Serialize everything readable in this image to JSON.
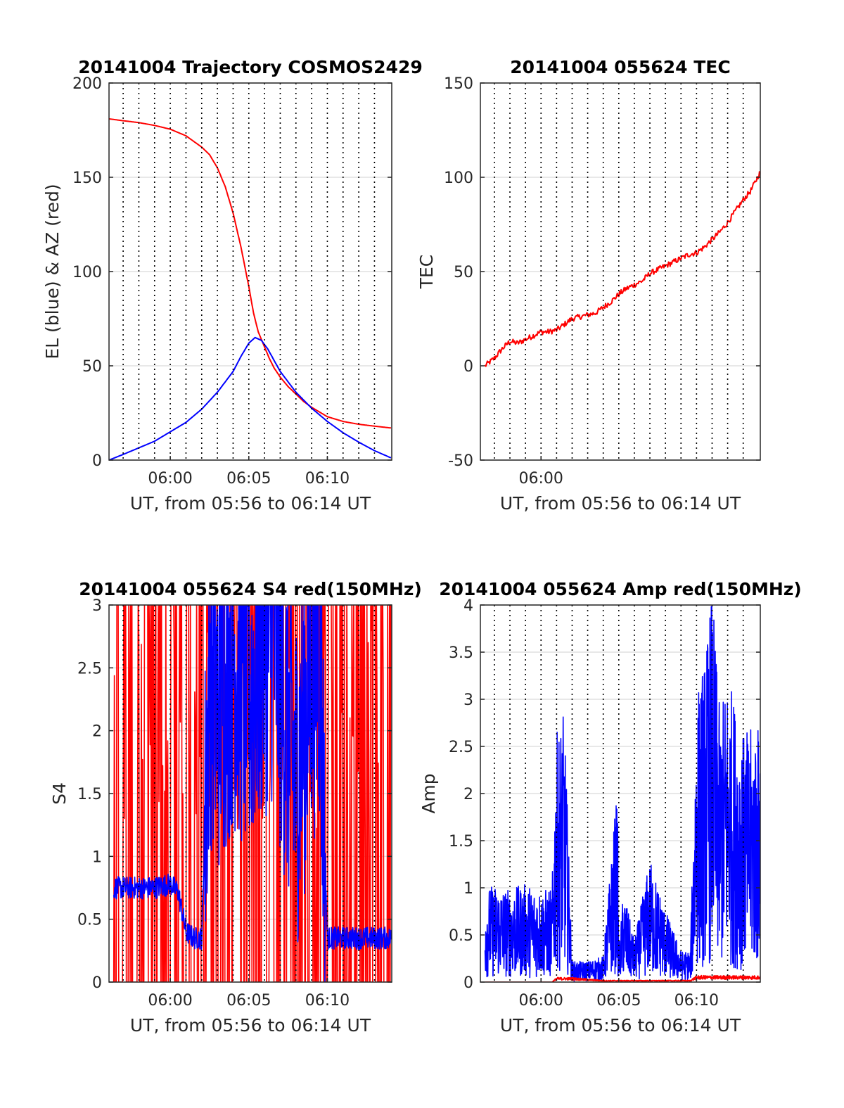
{
  "chart_data": [
    {
      "type": "line",
      "title": "20141004 Trajectory COSMOS2429",
      "xlabel": "UT, from 05:56 to 06:14 UT",
      "ylabel": "EL (blue) & AZ (red)",
      "xlim_minutes": [
        356.1,
        374.1
      ],
      "ylim": [
        0,
        200
      ],
      "yticks": [
        0,
        50,
        100,
        150,
        200
      ],
      "xticks": [
        {
          "x": 360,
          "label": "06:00"
        },
        {
          "x": 365,
          "label": "06:05"
        },
        {
          "x": 370,
          "label": "06:10"
        }
      ],
      "vgrid_minutes": [
        357,
        358,
        359,
        360,
        361,
        362,
        363,
        364,
        365,
        366,
        367,
        368,
        369,
        370,
        371,
        372,
        373
      ],
      "series": [
        {
          "color": "#ff0000",
          "x": [
            356.1,
            357,
            358,
            359,
            360,
            361,
            362,
            362.5,
            363,
            363.5,
            364,
            364.5,
            365,
            365.3,
            365.6,
            366,
            366.3,
            366.6,
            367,
            367.5,
            368,
            368.5,
            369,
            369.5,
            370,
            371,
            372,
            373,
            374.1
          ],
          "values": [
            181,
            180,
            179,
            177.5,
            175.5,
            172,
            166,
            162,
            155,
            145,
            131,
            113,
            92,
            78,
            68,
            60,
            54,
            49,
            44,
            39,
            35,
            31,
            28,
            25.5,
            23,
            20.5,
            19,
            18,
            17
          ]
        },
        {
          "color": "#0000ff",
          "x": [
            356.1,
            357,
            358,
            359,
            360,
            361,
            362,
            363,
            364,
            364.5,
            365,
            365.4,
            365.8,
            366.2,
            366.6,
            367,
            368,
            369,
            370,
            371,
            372,
            373,
            374.1
          ],
          "values": [
            0,
            3,
            6.5,
            10,
            15,
            20,
            27,
            36,
            47,
            55,
            62,
            65,
            63.5,
            59,
            53,
            47,
            36,
            27.5,
            20.5,
            14.5,
            9.5,
            5,
            1
          ]
        }
      ]
    },
    {
      "type": "line",
      "title": "20141004 055624 TEC",
      "xlabel": "UT, from 05:56 to 06:14 UT",
      "ylabel": "TEC",
      "xlim_minutes": [
        356.1,
        374.1
      ],
      "ylim": [
        -50,
        150
      ],
      "yticks": [
        -50,
        0,
        50,
        100,
        150
      ],
      "xticks": [
        {
          "x": 360,
          "label": "06:00"
        }
      ],
      "vgrid_minutes": [
        357,
        358,
        359,
        360,
        361,
        362,
        363,
        364,
        365,
        366,
        367,
        368,
        369,
        370,
        371,
        372,
        373
      ],
      "series": [
        {
          "color": "#ff0000",
          "x": [
            356.4,
            357,
            357.5,
            358,
            358.5,
            359,
            359.5,
            360,
            360.5,
            361,
            361.5,
            362,
            362.5,
            363,
            363.5,
            364,
            364.5,
            365,
            365.5,
            366,
            366.5,
            367,
            367.5,
            368,
            368.5,
            369,
            369.5,
            370,
            370.5,
            371,
            371.5,
            372,
            372.5,
            373,
            373.5,
            374.1
          ],
          "values": [
            0,
            4,
            9,
            13,
            12,
            14,
            16,
            18,
            18,
            19,
            22,
            25,
            26,
            27,
            28,
            31,
            34,
            38,
            41,
            43,
            45,
            49,
            51,
            53,
            55,
            57,
            59,
            60,
            63,
            67,
            71,
            76,
            82,
            88,
            93,
            103
          ]
        }
      ]
    },
    {
      "type": "line",
      "title": "20141004 055624 S4 red(150MHz)",
      "xlabel": "UT, from 05:56 to 06:14 UT",
      "ylabel": "S4",
      "xlim_minutes": [
        356.1,
        374.1
      ],
      "ylim": [
        0,
        3
      ],
      "yticks": [
        0,
        0.5,
        1,
        1.5,
        2,
        2.5,
        3
      ],
      "xticks": [
        {
          "x": 360,
          "label": "06:00"
        },
        {
          "x": 365,
          "label": "06:05"
        },
        {
          "x": 370,
          "label": "06:10"
        }
      ],
      "vgrid_minutes": [
        357,
        358,
        359,
        360,
        361,
        362,
        363,
        364,
        365,
        366,
        367,
        368,
        369,
        370,
        371,
        372,
        373
      ],
      "series": [
        {
          "color": "#ff0000",
          "x": [
            356.4,
            374.1
          ],
          "values": [
            0,
            3
          ],
          "rendering": "dense noisy trace spanning the full range"
        },
        {
          "color": "#0000ff",
          "x": [
            356.4,
            357,
            358,
            359,
            360,
            360.5,
            361,
            361.5,
            362,
            362.5,
            363,
            364,
            365,
            366,
            366.5,
            367,
            368,
            369,
            369.5,
            370,
            371,
            372,
            373,
            374.1
          ],
          "values": [
            0.75,
            0.75,
            0.75,
            0.75,
            0.78,
            0.72,
            0.4,
            0.35,
            0.35,
            2.5,
            2.2,
            2.6,
            2.3,
            2.7,
            2.8,
            2.4,
            1.6,
            2.5,
            2.6,
            0.35,
            0.35,
            0.35,
            0.35,
            0.35
          ]
        }
      ]
    },
    {
      "type": "line",
      "title": "20141004 055624 Amp red(150MHz)",
      "xlabel": "UT, from 05:56 to 06:14 UT",
      "ylabel": "Amp",
      "xlim_minutes": [
        356.1,
        374.1
      ],
      "ylim": [
        0,
        4
      ],
      "yticks": [
        0,
        0.5,
        1,
        1.5,
        2,
        2.5,
        3,
        3.5,
        4
      ],
      "xticks": [
        {
          "x": 360,
          "label": "06:00"
        },
        {
          "x": 365,
          "label": "06:05"
        },
        {
          "x": 370,
          "label": "06:10"
        }
      ],
      "vgrid_minutes": [
        357,
        358,
        359,
        360,
        361,
        362,
        363,
        364,
        365,
        366,
        367,
        368,
        369,
        370,
        371,
        372,
        373
      ],
      "series": [
        {
          "color": "#0000ff",
          "x": [
            356.4,
            357,
            358,
            359,
            360,
            360.7,
            361,
            361.5,
            362,
            363,
            364,
            364.9,
            365,
            365.3,
            366,
            367,
            368,
            369,
            369.6,
            370,
            370.5,
            371,
            371.5,
            372,
            373,
            374.1
          ],
          "values": [
            0.9,
            0.95,
            0.9,
            0.95,
            0.9,
            0.9,
            2.4,
            2.6,
            0.2,
            0.2,
            0.25,
            1.9,
            0.3,
            0.9,
            0.4,
            1.2,
            0.7,
            0.3,
            0.3,
            2.8,
            3.1,
            3.8,
            2.6,
            3.0,
            2.4,
            2.5
          ]
        },
        {
          "color": "#ff0000",
          "x": [
            356.4,
            360.7,
            361,
            362,
            364,
            366,
            368,
            369.6,
            370,
            372,
            374.1
          ],
          "values": [
            0,
            0,
            0.05,
            0.05,
            0.02,
            0.02,
            0.02,
            0.02,
            0.07,
            0.07,
            0.07
          ]
        }
      ]
    }
  ]
}
